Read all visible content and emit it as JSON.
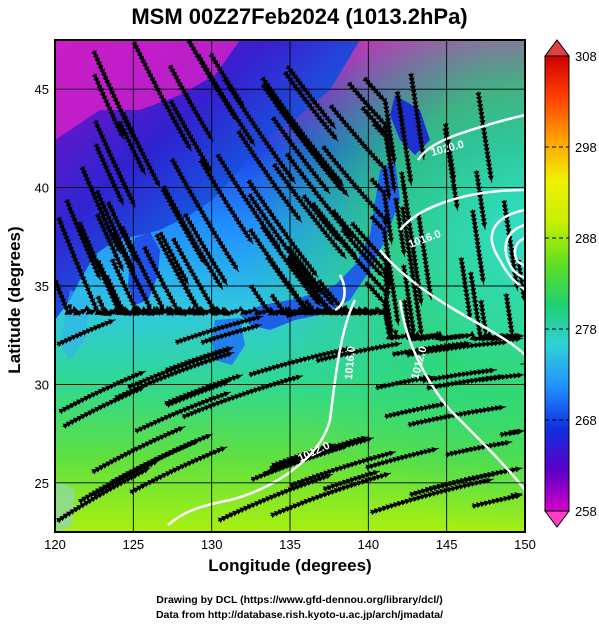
{
  "title": "MSM 00Z27Feb2024 (1013.2hPa)",
  "x_axis": {
    "label": "Longitude (degrees)",
    "ticks": [
      "120",
      "125",
      "130",
      "135",
      "140",
      "145",
      "150"
    ],
    "min": 120,
    "max": 150
  },
  "y_axis": {
    "label": "Latitude  (degrees)",
    "ticks": [
      "25",
      "30",
      "35",
      "40",
      "45"
    ],
    "min": 22.5,
    "max": 47.5
  },
  "colorbar": {
    "min": 258,
    "max": 308,
    "labels": [
      "258",
      "268",
      "278",
      "288",
      "298",
      "308"
    ],
    "colors": [
      "#d400c8",
      "#5a00c8",
      "#1030e0",
      "#2090ff",
      "#30d0d8",
      "#20d070",
      "#60e020",
      "#c8f000",
      "#f0f000",
      "#ffa000",
      "#ff4000",
      "#d00000"
    ]
  },
  "contours": [
    {
      "label": "1020.0"
    },
    {
      "label": "1016.0"
    },
    {
      "label": "1012.0"
    },
    {
      "label": "1016.0"
    },
    {
      "label": "1012.0"
    }
  ],
  "credits": {
    "line1": "Drawing by DCL (https://www.gfd-dennou.org/library/dcl/)",
    "line2": "Data from http://database.rish.kyoto-u.ac.jp/arch/jmadata/"
  }
}
